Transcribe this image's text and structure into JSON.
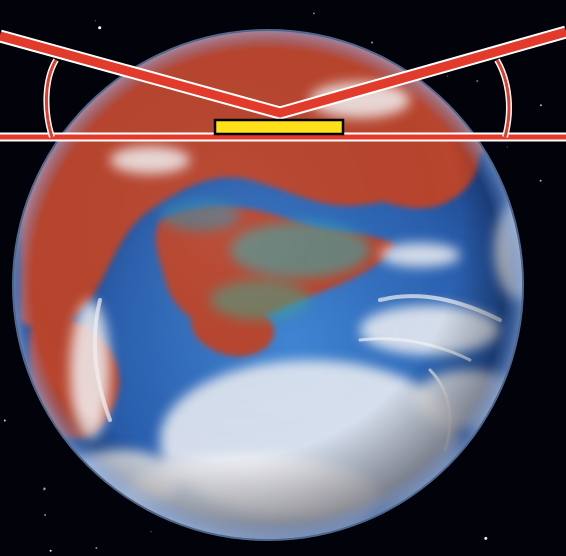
{
  "scene": {
    "subject": "planet-globe-icon",
    "background_color": "#02030a",
    "ocean_color": "#2a5fae",
    "land_color": "#b8452e",
    "cloud_color": "#f2f2f4"
  },
  "overlay": {
    "frame_color": "#e23b2c",
    "frame_outline_color": "#ffffff",
    "bar_fill_color": "#ffe11a",
    "bar_border_color": "#000000"
  }
}
